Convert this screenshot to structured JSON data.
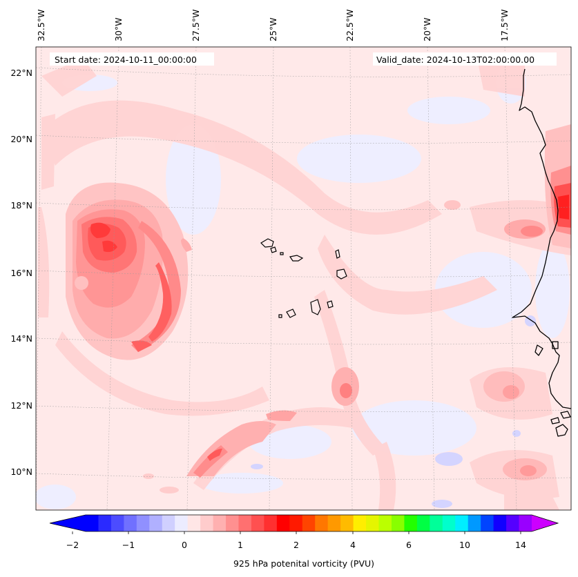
{
  "header": {
    "start_date": "Start date: 2024-10-11_00:00:00",
    "valid_date": "Valid_date: 2024-10-13T02:00:00.00"
  },
  "axes": {
    "lon_labels": [
      "32.5°W",
      "30°W",
      "27.5°W",
      "25°W",
      "22.5°W",
      "20°W",
      "17.5°W"
    ],
    "lat_labels": [
      "22°N",
      "20°N",
      "18°N",
      "16°N",
      "14°N",
      "12°N",
      "10°N"
    ]
  },
  "colorbar": {
    "label": "925 hPa potenital vorticity (PVU)",
    "tick_labels": [
      "−2",
      "−1",
      "0",
      "1",
      "2",
      "4",
      "6",
      "10",
      "14"
    ],
    "colors": [
      "#0000ff",
      "#2a2aff",
      "#4c4cff",
      "#7070ff",
      "#9090ff",
      "#b0b0ff",
      "#d0d0ff",
      "#ececff",
      "#ffe6e6",
      "#ffcccc",
      "#ffb0b0",
      "#ff9090",
      "#ff7070",
      "#ff5050",
      "#ff3030",
      "#ff0000",
      "#ff1a00",
      "#ff4400",
      "#ff7700",
      "#ff9900",
      "#ffbb00",
      "#ffee00",
      "#e5f500",
      "#bbff00",
      "#88ff00",
      "#22ff00",
      "#00ff44",
      "#00ff99",
      "#00ffcc",
      "#00eeff",
      "#0099ff",
      "#0044ff",
      "#1100ff",
      "#5500ff",
      "#9900ff"
    ],
    "under_color": "#0000ff",
    "over_color": "#cc00ff"
  },
  "map": {
    "background_color": "#ffe9e9",
    "coastline_color": "#000000"
  }
}
